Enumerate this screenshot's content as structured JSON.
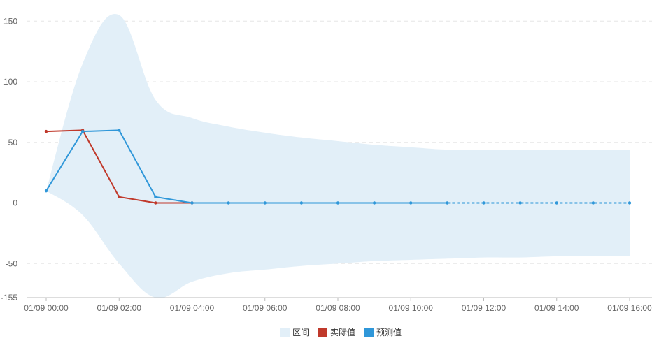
{
  "colors": {
    "band": "#e2eff8",
    "actual": "#c0392b",
    "predicted": "#2f97d9",
    "grid": "#e6e6e6",
    "axis": "#bbbbbb",
    "text": "#666666"
  },
  "legend": [
    {
      "key": "band",
      "label": "区间"
    },
    {
      "key": "actual",
      "label": "实际值"
    },
    {
      "key": "predicted",
      "label": "预测值"
    }
  ],
  "chart_data": {
    "type": "line",
    "ylim": [
      -155,
      160
    ],
    "y_ticks": [
      "150",
      "100",
      "50",
      "0",
      "-50"
    ],
    "y_ticks_values": [
      150,
      100,
      50,
      0,
      -50
    ],
    "y_bottom_label": "-155",
    "x_ticks": [
      "01/09 00:00",
      "01/09 02:00",
      "01/09 04:00",
      "01/09 06:00",
      "01/09 08:00",
      "01/09 10:00",
      "01/09 12:00",
      "01/09 14:00",
      "01/09 16:00"
    ],
    "x_ticks_hours": [
      0,
      2,
      4,
      6,
      8,
      10,
      12,
      14,
      16
    ],
    "x_hours": [
      0,
      1,
      2,
      3,
      4,
      5,
      6,
      7,
      8,
      9,
      10,
      11,
      12,
      13,
      14,
      15,
      16
    ],
    "band": {
      "name": "区间",
      "upper": [
        10,
        115,
        155,
        85,
        70,
        63,
        58,
        54,
        51,
        48,
        46,
        44,
        44,
        44,
        44,
        44,
        44
      ],
      "lower": [
        10,
        -10,
        -50,
        -150,
        -65,
        -58,
        -55,
        -52,
        -50,
        -48,
        -47,
        -46,
        -45,
        -45,
        -44,
        -44,
        -44
      ]
    },
    "series": [
      {
        "name": "实际值",
        "key": "actual",
        "values": [
          59,
          60,
          5,
          0,
          0,
          null,
          null,
          null,
          null,
          null,
          null,
          null,
          null,
          null,
          null,
          null,
          null
        ],
        "style": "solid"
      },
      {
        "name": "预测值",
        "key": "predicted",
        "values": [
          10,
          59,
          60,
          5,
          0,
          0,
          0,
          0,
          0,
          0,
          0,
          0,
          0,
          0,
          0,
          0,
          0
        ],
        "solid_until_index": 11,
        "style": "solid-then-dashed"
      }
    ]
  }
}
